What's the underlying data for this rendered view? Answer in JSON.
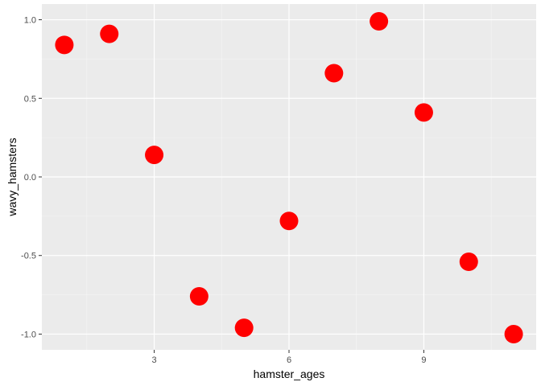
{
  "chart_data": {
    "type": "scatter",
    "title": "",
    "xlabel": "hamster_ages",
    "ylabel": "wavy_hamsters",
    "xlim": [
      0.5,
      11.5
    ],
    "ylim": [
      -1.1,
      1.1
    ],
    "x_ticks": [
      3,
      6,
      9
    ],
    "x_tick_labels": [
      "3",
      "6",
      "9"
    ],
    "y_ticks": [
      -1.0,
      -0.5,
      0.0,
      0.5,
      1.0
    ],
    "y_tick_labels": [
      "-1.0",
      "-0.5",
      "0.0",
      "0.5",
      "1.0"
    ],
    "grid": true,
    "legend": "none",
    "point_color": "#ff0000",
    "panel_background": "#ebebeb",
    "x": [
      1,
      2,
      3,
      4,
      5,
      6,
      7,
      8,
      9,
      10,
      11
    ],
    "y": [
      0.84,
      0.91,
      0.14,
      -0.76,
      -0.96,
      -0.28,
      0.66,
      0.99,
      0.41,
      -0.54,
      -1.0
    ]
  }
}
